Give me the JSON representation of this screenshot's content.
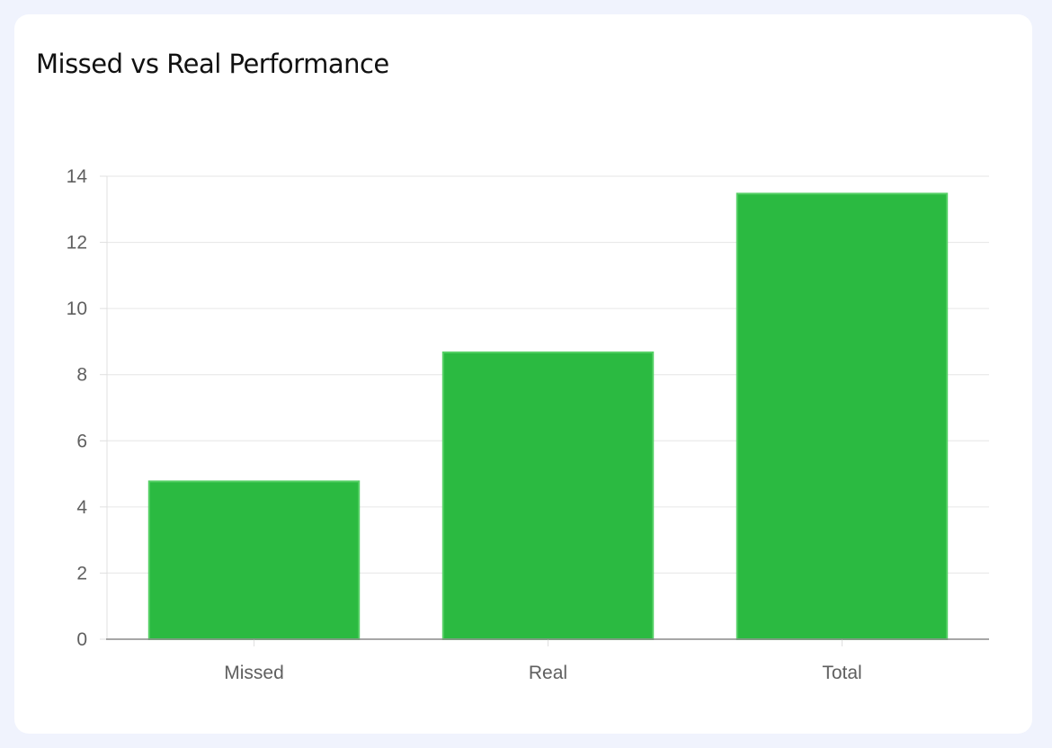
{
  "card": {
    "title": "Missed vs Real Performance"
  },
  "chart_data": {
    "type": "bar",
    "title": "Missed vs Real Performance",
    "categories": [
      "Missed",
      "Real",
      "Total"
    ],
    "values": [
      4.8,
      8.7,
      13.5
    ],
    "xlabel": "",
    "ylabel": "",
    "ylim": [
      0,
      14
    ],
    "yticks": [
      "0",
      "2",
      "4",
      "6",
      "8",
      "10",
      "12",
      "14"
    ],
    "grid": true,
    "legend": "none",
    "bar_color": "#2bba41",
    "bar_border_color": "#56d066"
  }
}
